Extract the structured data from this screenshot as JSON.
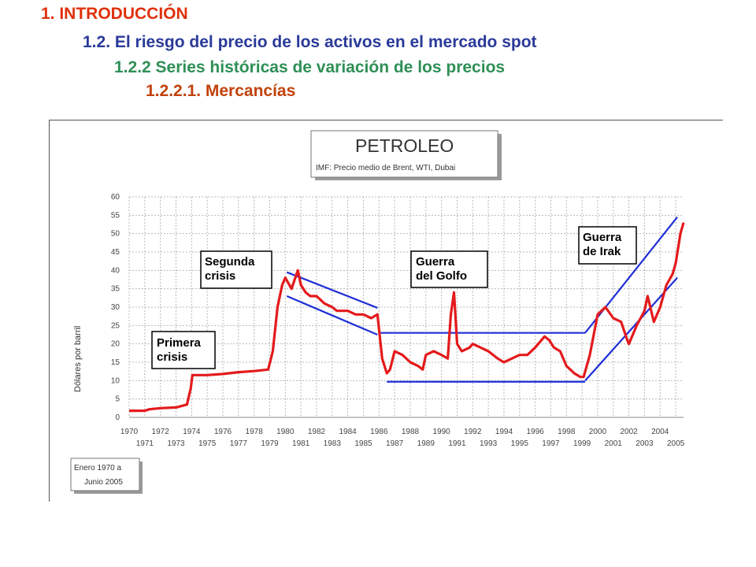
{
  "headings": {
    "h1": "1. INTRODUCCIÓN",
    "h2": "1.2. El riesgo del precio de los activos en el mercado spot",
    "h3": "1.2.2 Series históricas de variación de los precios",
    "h4": "1.2.2.1. Mercancías"
  },
  "colors": {
    "series": "#e41a1c",
    "trend_lines": "#1f2fd6",
    "grid": "#b8b8b8"
  },
  "chart_data": {
    "type": "line",
    "title": "PETROLEO",
    "subtitle": "IMF: Precio medio de Brent, WTI, Dubai",
    "xlabel": "",
    "ylabel": "Dólares por barril",
    "ylim": [
      0,
      60
    ],
    "xlim": [
      1970,
      2005.5
    ],
    "grid": true,
    "y_ticks": [
      "0",
      "5",
      "10",
      "15",
      "20",
      "25",
      "30",
      "35",
      "40",
      "45",
      "50",
      "55",
      "60"
    ],
    "x_ticks_top": [
      "1970",
      "1972",
      "1974",
      "1976",
      "1978",
      "1980",
      "1982",
      "1984",
      "1986",
      "1988",
      "1990",
      "1992",
      "1994",
      "1996",
      "1998",
      "2000",
      "2002",
      "2004"
    ],
    "x_ticks_bottom": [
      "1971",
      "1973",
      "1975",
      "1977",
      "1979",
      "1981",
      "1983",
      "1985",
      "1987",
      "1989",
      "1991",
      "1993",
      "1995",
      "1997",
      "1999",
      "2001",
      "2003",
      "2005"
    ],
    "date_range_note": [
      "Enero 1970 a",
      "Junio 2005"
    ],
    "series": [
      {
        "x": [
          1970,
          1971,
          1971.3,
          1972,
          1973,
          1973.7,
          1973.95,
          1974.05,
          1975,
          1976,
          1977,
          1978,
          1978.9,
          1979.2,
          1979.5,
          1979.8,
          1980,
          1980.4,
          1980.8,
          1981,
          1981.3,
          1981.6,
          1982,
          1982.5,
          1983,
          1983.3,
          1984,
          1984.5,
          1985,
          1985.5,
          1985.9,
          1986.2,
          1986.5,
          1986.7,
          1987,
          1987.5,
          1988,
          1988.5,
          1988.8,
          1989,
          1989.5,
          1990,
          1990.4,
          1990.6,
          1990.8,
          1991,
          1991.3,
          1991.8,
          1992,
          1992.5,
          1993,
          1993.6,
          1994,
          1994.5,
          1995,
          1995.5,
          1996,
          1996.6,
          1996.9,
          1997.2,
          1997.6,
          1998,
          1998.5,
          1998.9,
          1999.1,
          1999.5,
          2000,
          2000.5,
          2001,
          2001.5,
          2001.9,
          2002,
          2002.5,
          2003,
          2003.2,
          2003.6,
          2004,
          2004.4,
          2004.8,
          2005,
          2005.3,
          2005.5
        ],
        "y": [
          1.8,
          1.8,
          2.2,
          2.5,
          2.7,
          3.5,
          8,
          11.5,
          11.5,
          11.8,
          12.3,
          12.6,
          13,
          18,
          30,
          36,
          38,
          35,
          40,
          36,
          34,
          33,
          33,
          31,
          30,
          29,
          29,
          28,
          28,
          27,
          28,
          16,
          12,
          13,
          18,
          17,
          15,
          14,
          13,
          17,
          18,
          17,
          16,
          28,
          34,
          20,
          18,
          19,
          20,
          19,
          18,
          16,
          15,
          16,
          17,
          17,
          19,
          22,
          21,
          19,
          18,
          14,
          12,
          11,
          11,
          17,
          28,
          30,
          27,
          26,
          21,
          20,
          25,
          29,
          33,
          26,
          30,
          36,
          39,
          42,
          50,
          53
        ]
      }
    ],
    "annotations": [
      {
        "lines": [
          "Primera",
          "crisis"
        ]
      },
      {
        "lines": [
          "Segunda",
          "crisis"
        ]
      },
      {
        "lines": [
          "Guerra",
          "del Golfo"
        ]
      },
      {
        "lines": [
          "Guerra",
          "de Irak"
        ]
      }
    ],
    "trend_lines": [
      {
        "points": [
          [
            1980.1,
            39.5
          ],
          [
            1985.9,
            29.8
          ]
        ]
      },
      {
        "points": [
          [
            1980.1,
            33
          ],
          [
            1985.9,
            22.5
          ]
        ]
      },
      {
        "points": [
          [
            1986.1,
            23
          ],
          [
            1999.2,
            23
          ]
        ]
      },
      {
        "points": [
          [
            1986.5,
            9.7
          ],
          [
            1999.2,
            9.7
          ]
        ]
      },
      {
        "points": [
          [
            1999.2,
            23
          ],
          [
            2005.1,
            54.5
          ]
        ]
      },
      {
        "points": [
          [
            1999.2,
            10
          ],
          [
            2005.1,
            38
          ]
        ]
      }
    ]
  }
}
